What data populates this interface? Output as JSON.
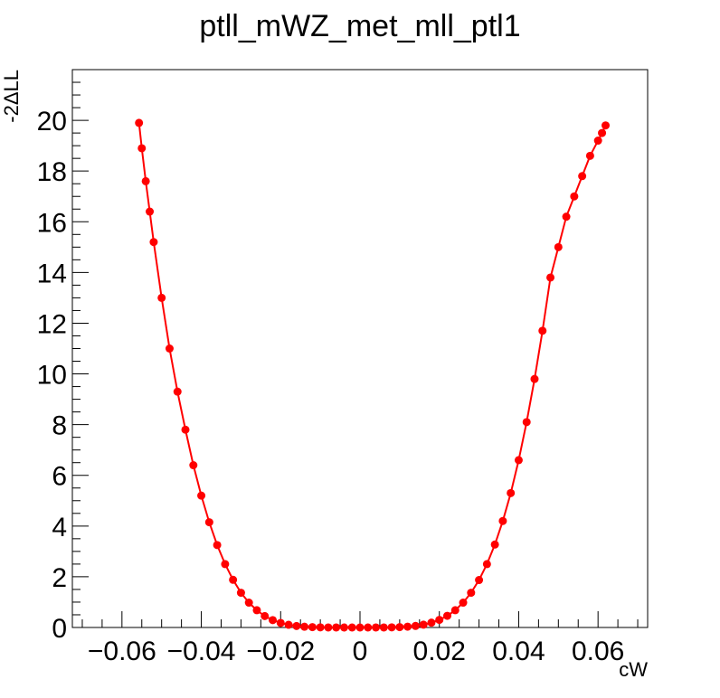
{
  "chart_data": {
    "type": "scatter",
    "title": "ptll_mWZ_met_mll_ptl1",
    "xlabel": "cW",
    "ylabel": "-2ΔLL",
    "xlim": [
      -0.0725,
      0.0725
    ],
    "ylim": [
      0,
      22
    ],
    "x_ticks": [
      -0.06,
      -0.04,
      -0.02,
      0,
      0.02,
      0.04,
      0.06
    ],
    "x_tick_labels": [
      "−0.06",
      "−0.04",
      "−0.02",
      "0",
      "0.02",
      "0.04",
      "0.06"
    ],
    "y_ticks": [
      0,
      2,
      4,
      6,
      8,
      10,
      12,
      14,
      16,
      18,
      20
    ],
    "y_tick_labels": [
      "0",
      "2",
      "4",
      "6",
      "8",
      "10",
      "12",
      "14",
      "16",
      "18",
      "20"
    ],
    "grid": false,
    "legend": "none",
    "marker_color": "#ff0000",
    "line_color": "#ff0000",
    "series": [
      {
        "x": [
          -0.0557,
          -0.055,
          -0.054,
          -0.053,
          -0.052,
          -0.05,
          -0.048,
          -0.046,
          -0.044,
          -0.042,
          -0.04,
          -0.038,
          -0.036,
          -0.034,
          -0.032,
          -0.03,
          -0.028,
          -0.026,
          -0.024,
          -0.022,
          -0.02,
          -0.018,
          -0.016,
          -0.014,
          -0.012,
          -0.01,
          -0.008,
          -0.006,
          -0.004,
          -0.002,
          0.0,
          0.002,
          0.004,
          0.006,
          0.008,
          0.01,
          0.012,
          0.014,
          0.016,
          0.018,
          0.02,
          0.022,
          0.024,
          0.026,
          0.028,
          0.03,
          0.032,
          0.034,
          0.036,
          0.038,
          0.04,
          0.042,
          0.044,
          0.046,
          0.048,
          0.05,
          0.052,
          0.054,
          0.056,
          0.058,
          0.06,
          0.061,
          0.0619
        ],
        "y": [
          19.9,
          18.9,
          17.6,
          16.4,
          15.2,
          13.0,
          11.0,
          9.3,
          7.8,
          6.4,
          5.2,
          4.15,
          3.25,
          2.5,
          1.88,
          1.37,
          0.98,
          0.68,
          0.45,
          0.29,
          0.18,
          0.105,
          0.058,
          0.03,
          0.014,
          0.006,
          0.002,
          0.0005,
          0.0001,
          0.0,
          0.0,
          0.0001,
          0.0005,
          0.002,
          0.006,
          0.015,
          0.032,
          0.062,
          0.11,
          0.19,
          0.3,
          0.46,
          0.68,
          0.98,
          1.37,
          1.87,
          2.5,
          3.27,
          4.2,
          5.3,
          6.6,
          8.1,
          9.8,
          11.7,
          13.8,
          15.0,
          16.2,
          17.0,
          17.8,
          18.6,
          19.2,
          19.5,
          19.8
        ]
      }
    ]
  }
}
